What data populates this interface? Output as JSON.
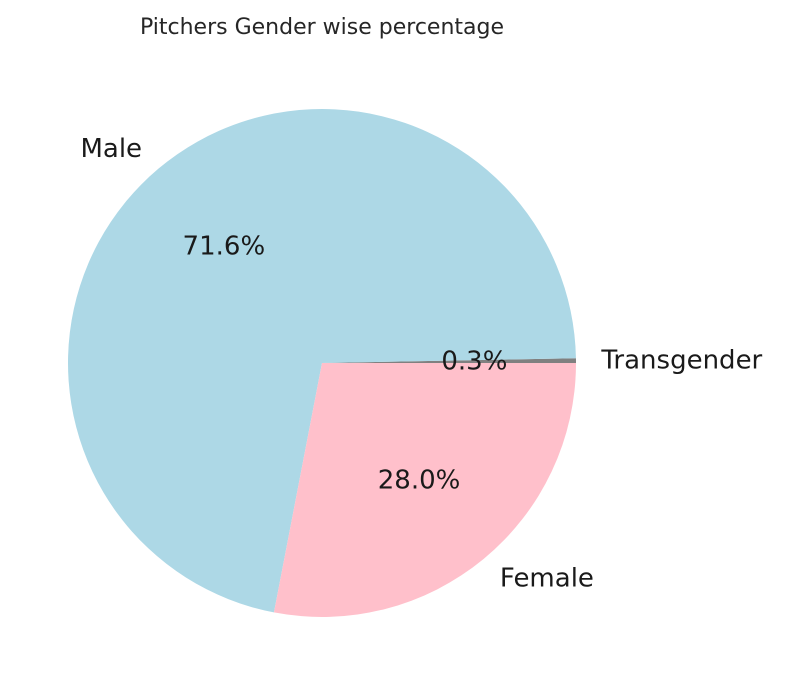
{
  "chart_data": {
    "type": "pie",
    "title": "Pitchers Gender wise percentage",
    "slices": [
      {
        "label": "Transgender",
        "value": 0.3,
        "pct_label": "0.3%",
        "color": "#808080"
      },
      {
        "label": "Male",
        "value": 71.6,
        "pct_label": "71.6%",
        "color": "#add8e6"
      },
      {
        "label": "Female",
        "value": 28.0,
        "pct_label": "28.0%",
        "color": "#ffc0cb"
      }
    ],
    "start_angle_deg": 0,
    "direction": "counterclockwise",
    "legend": "none"
  }
}
